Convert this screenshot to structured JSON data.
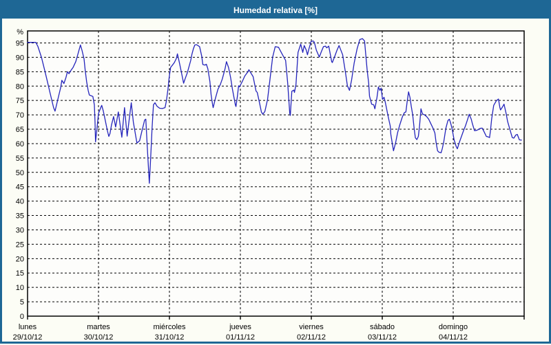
{
  "window": {
    "title": "Humedad relativa [%]"
  },
  "colors": {
    "titlebar": "#1e6795",
    "frame_border": "#1e6795",
    "content_bg": "#fcfdf5",
    "plot_bg": "#fdfdfb",
    "plot_border": "#000000",
    "grid": "#000000",
    "text": "#000000",
    "line": "#2424bb"
  },
  "chart_data": {
    "type": "line",
    "title": "Humedad relativa [%]",
    "ylabel": "%",
    "y_unit_label": "%",
    "y_ticks": [
      0,
      5,
      10,
      15,
      20,
      25,
      30,
      35,
      40,
      45,
      50,
      55,
      60,
      65,
      70,
      75,
      80,
      85,
      90,
      95
    ],
    "ylim": [
      0,
      99.2
    ],
    "grid": "dashed",
    "legend_position": "none",
    "x_axis": {
      "hours_span": 168,
      "hours_per_day": 24,
      "days": [
        {
          "name": "lunes",
          "date": "29/10/12"
        },
        {
          "name": "martes",
          "date": "30/10/12"
        },
        {
          "name": "miércoles",
          "date": "31/10/12"
        },
        {
          "name": "jueves",
          "date": "01/11/12"
        },
        {
          "name": "viernes",
          "date": "02/11/12"
        },
        {
          "name": "sábado",
          "date": "03/11/12"
        },
        {
          "name": "domingo",
          "date": "04/11/12"
        }
      ]
    },
    "series": [
      {
        "name": "Humedad relativa [%]",
        "color": "#2424bb",
        "points": [
          [
            0,
            95.2
          ],
          [
            2.8,
            95.2
          ],
          [
            3.5,
            93.8
          ],
          [
            4.7,
            90
          ],
          [
            5.8,
            85.5
          ],
          [
            6.5,
            82.5
          ],
          [
            7.4,
            78.5
          ],
          [
            8.1,
            75.5
          ],
          [
            8.8,
            72.5
          ],
          [
            9.3,
            71.3
          ],
          [
            9.8,
            73.5
          ],
          [
            10.5,
            76.5
          ],
          [
            11.2,
            79.5
          ],
          [
            11.6,
            82
          ],
          [
            12.3,
            80.9
          ],
          [
            13,
            83
          ],
          [
            13.5,
            85
          ],
          [
            14,
            84.3
          ],
          [
            14.7,
            85.5
          ],
          [
            15.4,
            86.5
          ],
          [
            16.3,
            88.5
          ],
          [
            17,
            91
          ],
          [
            17.9,
            94.3
          ],
          [
            18.4,
            92.5
          ],
          [
            19.1,
            89.5
          ],
          [
            19.5,
            85.5
          ],
          [
            20,
            81.5
          ],
          [
            20.5,
            78.5
          ],
          [
            20.9,
            76.9
          ],
          [
            21.6,
            76.6
          ],
          [
            22.1,
            76.4
          ],
          [
            22.6,
            73.5
          ],
          [
            22.8,
            68
          ],
          [
            23,
            60.6
          ],
          [
            23.5,
            65.5
          ],
          [
            24,
            70.5
          ],
          [
            24.9,
            72.9
          ],
          [
            25.1,
            73.3
          ],
          [
            25.6,
            71.4
          ],
          [
            26.3,
            68
          ],
          [
            27,
            64.5
          ],
          [
            27.5,
            62.5
          ],
          [
            27.9,
            63.5
          ],
          [
            28.4,
            66.5
          ],
          [
            29.1,
            69.4
          ],
          [
            29.8,
            65.8
          ],
          [
            30.7,
            71
          ],
          [
            31.9,
            62.2
          ],
          [
            32.8,
            72.5
          ],
          [
            33.7,
            62.6
          ],
          [
            35.1,
            74.2
          ],
          [
            35.8,
            67.5
          ],
          [
            37,
            60.2
          ],
          [
            37.9,
            61
          ],
          [
            38.6,
            64
          ],
          [
            39.6,
            68.2
          ],
          [
            40,
            68.5
          ],
          [
            40.5,
            59
          ],
          [
            41.2,
            46.2
          ],
          [
            41.4,
            50
          ],
          [
            41.9,
            60.2
          ],
          [
            42.1,
            65
          ],
          [
            42.6,
            73.5
          ],
          [
            43.1,
            74.2
          ],
          [
            43.8,
            73
          ],
          [
            44.7,
            72.3
          ],
          [
            45.6,
            72.2
          ],
          [
            46.5,
            72.5
          ],
          [
            47,
            75
          ],
          [
            47.5,
            79
          ],
          [
            47.9,
            83
          ],
          [
            48.4,
            86.5
          ],
          [
            49.1,
            87.4
          ],
          [
            49.6,
            88.1
          ],
          [
            50.3,
            89.5
          ],
          [
            50.7,
            91.2
          ],
          [
            51.4,
            88
          ],
          [
            52.1,
            84.5
          ],
          [
            52.8,
            81
          ],
          [
            53.3,
            82.5
          ],
          [
            54,
            84.5
          ],
          [
            55.2,
            88.9
          ],
          [
            55.6,
            91
          ],
          [
            56.1,
            93
          ],
          [
            56.6,
            94.3
          ],
          [
            57.2,
            94.4
          ],
          [
            58.2,
            93.7
          ],
          [
            58.9,
            90.5
          ],
          [
            59.3,
            87.5
          ],
          [
            60,
            87.3
          ],
          [
            60.5,
            87.6
          ],
          [
            61,
            86
          ],
          [
            61.7,
            81.5
          ],
          [
            62.1,
            77
          ],
          [
            62.6,
            73.5
          ],
          [
            62.8,
            72.5
          ],
          [
            63.5,
            75.5
          ],
          [
            64.4,
            78.9
          ],
          [
            65.2,
            80.5
          ],
          [
            65.9,
            82.5
          ],
          [
            66.8,
            86
          ],
          [
            67.3,
            88.5
          ],
          [
            68,
            86.5
          ],
          [
            68.7,
            83
          ],
          [
            69.3,
            79
          ],
          [
            70.3,
            73.5
          ],
          [
            70.5,
            72.9
          ],
          [
            71,
            76.5
          ],
          [
            71.4,
            80.1
          ],
          [
            71.7,
            79.7
          ],
          [
            72.6,
            81.5
          ],
          [
            73.5,
            83.5
          ],
          [
            74.5,
            84.9
          ],
          [
            74.9,
            85.7
          ],
          [
            75.4,
            84.8
          ],
          [
            76.3,
            83.3
          ],
          [
            77.3,
            78.3
          ],
          [
            77.7,
            77.8
          ],
          [
            78.4,
            74.5
          ],
          [
            79.1,
            71
          ],
          [
            79.6,
            70.2
          ],
          [
            80.3,
            71.2
          ],
          [
            81.2,
            75.4
          ],
          [
            82.2,
            84
          ],
          [
            82.9,
            90
          ],
          [
            83.8,
            93.7
          ],
          [
            84.9,
            93.5
          ],
          [
            86.1,
            91.2
          ],
          [
            87.3,
            88.9
          ],
          [
            88,
            81
          ],
          [
            88.7,
            70.5
          ],
          [
            88.9,
            69.8
          ],
          [
            89.4,
            78.2
          ],
          [
            90.1,
            78.6
          ],
          [
            90.3,
            77.8
          ],
          [
            90.8,
            80.5
          ],
          [
            91.5,
            91.7
          ],
          [
            92.4,
            94.6
          ],
          [
            93.1,
            91.7
          ],
          [
            93.6,
            94.1
          ],
          [
            94.3,
            92.5
          ],
          [
            94.7,
            90.9
          ],
          [
            95.2,
            93
          ],
          [
            95.9,
            95.5
          ],
          [
            96.6,
            95.7
          ],
          [
            97,
            95.3
          ],
          [
            97.7,
            92.5
          ],
          [
            98.7,
            90.1
          ],
          [
            99.4,
            92
          ],
          [
            100.1,
            93.7
          ],
          [
            100.8,
            93.9
          ],
          [
            101.2,
            93.3
          ],
          [
            101.9,
            93.9
          ],
          [
            102.9,
            88.5
          ],
          [
            103.1,
            88.2
          ],
          [
            103.8,
            90
          ],
          [
            104.7,
            92.5
          ],
          [
            105.4,
            94.1
          ],
          [
            106.6,
            90.9
          ],
          [
            107.5,
            85
          ],
          [
            108.2,
            80.1
          ],
          [
            108.9,
            78.5
          ],
          [
            109.6,
            82
          ],
          [
            110.5,
            88
          ],
          [
            111.5,
            93
          ],
          [
            112.4,
            96.2
          ],
          [
            113.3,
            96.5
          ],
          [
            114,
            95.7
          ],
          [
            114.5,
            90
          ],
          [
            114.9,
            85.5
          ],
          [
            115.4,
            81
          ],
          [
            115.7,
            76.5
          ],
          [
            116.4,
            73.7
          ],
          [
            117.1,
            73.5
          ],
          [
            117.5,
            72.1
          ],
          [
            118.2,
            76
          ],
          [
            118.7,
            79.7
          ],
          [
            119.2,
            78.5
          ],
          [
            119.6,
            79.3
          ],
          [
            120.1,
            75.4
          ],
          [
            120.6,
            76.1
          ],
          [
            121,
            74.5
          ],
          [
            121.7,
            70.9
          ],
          [
            122.2,
            68.5
          ],
          [
            122.7,
            66.1
          ],
          [
            122.9,
            63.3
          ],
          [
            123.3,
            60.6
          ],
          [
            123.8,
            57.5
          ],
          [
            124.5,
            60.2
          ],
          [
            125.2,
            63.8
          ],
          [
            125.9,
            66.4
          ],
          [
            126.8,
            69.3
          ],
          [
            127.5,
            70.8
          ],
          [
            128,
            71
          ],
          [
            128.4,
            74.5
          ],
          [
            128.9,
            78
          ],
          [
            129.4,
            76
          ],
          [
            129.8,
            73
          ],
          [
            130.3,
            70
          ],
          [
            130.8,
            65
          ],
          [
            131.2,
            62
          ],
          [
            131.7,
            61.4
          ],
          [
            132.2,
            62.5
          ],
          [
            132.6,
            66
          ],
          [
            133.1,
            72.1
          ],
          [
            133.6,
            70.3
          ],
          [
            134.3,
            70
          ],
          [
            135,
            69.4
          ],
          [
            135.7,
            68.5
          ],
          [
            136.4,
            67
          ],
          [
            137.1,
            65.5
          ],
          [
            137.8,
            63.7
          ],
          [
            138.2,
            60.5
          ],
          [
            138.7,
            57.5
          ],
          [
            139.2,
            57
          ],
          [
            139.9,
            56.8
          ],
          [
            140.3,
            58.2
          ],
          [
            140.8,
            60.6
          ],
          [
            141.5,
            65.3
          ],
          [
            142.2,
            68
          ],
          [
            142.7,
            68.5
          ],
          [
            143.1,
            67.3
          ],
          [
            143.6,
            65.3
          ],
          [
            144.3,
            61.3
          ],
          [
            145,
            59
          ],
          [
            145.4,
            58.2
          ],
          [
            146.1,
            60.5
          ],
          [
            146.8,
            62.5
          ],
          [
            147.5,
            64.5
          ],
          [
            148.2,
            66.3
          ],
          [
            148.9,
            68.5
          ],
          [
            149.4,
            70.2
          ],
          [
            150.1,
            68.5
          ],
          [
            150.5,
            66.9
          ],
          [
            151.2,
            64.5
          ],
          [
            151.9,
            64.6
          ],
          [
            152.6,
            64.9
          ],
          [
            153.1,
            65.3
          ],
          [
            153.8,
            65.4
          ],
          [
            154.5,
            64
          ],
          [
            155.2,
            62.5
          ],
          [
            155.9,
            62.3
          ],
          [
            156.3,
            62.1
          ],
          [
            156.6,
            64.5
          ],
          [
            157,
            68.5
          ],
          [
            157.7,
            73.3
          ],
          [
            158.6,
            74.9
          ],
          [
            159.3,
            75.5
          ],
          [
            159.8,
            72.5
          ],
          [
            160,
            71.7
          ],
          [
            160.7,
            72.8
          ],
          [
            161.2,
            73.7
          ],
          [
            161.9,
            70.5
          ],
          [
            162.4,
            67.7
          ],
          [
            163.3,
            64.5
          ],
          [
            164,
            62.1
          ],
          [
            164.5,
            61.9
          ],
          [
            165.2,
            63
          ],
          [
            165.7,
            63.2
          ],
          [
            166.4,
            61.3
          ],
          [
            167.1,
            61.2
          ]
        ]
      }
    ]
  }
}
